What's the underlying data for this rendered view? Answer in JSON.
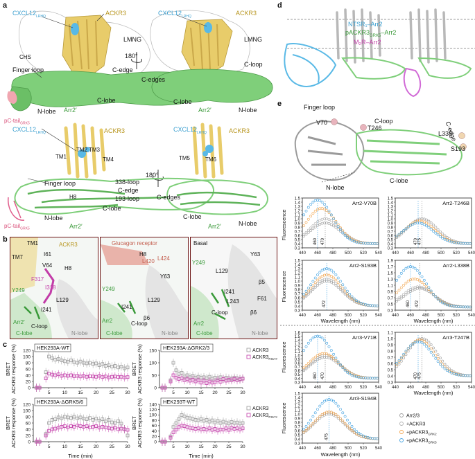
{
  "panels": {
    "a": "a",
    "b": "b",
    "c": "c",
    "d": "d",
    "e": "e"
  },
  "colors": {
    "ackr3": "#e8cc6a",
    "arr2": "#7fcf7a",
    "cxcl12": "#59b9e6",
    "ptail": "#f0a6b0",
    "magenta": "#c23ca8",
    "orange": "#f2a34a",
    "blue": "#3fa0e0",
    "grey": "#9a9a9a",
    "frame": "#6a1010"
  },
  "panel_a": {
    "top_left": {
      "cxcl12": "CXCL12",
      "cxcl12_sub": "LRHQ",
      "ackr3": "ACKR3",
      "lmng": "LMNG",
      "chs": "CHS",
      "finger_loop": "Finger loop",
      "c_edge": "C-edge",
      "c_lobe": "C-lobe",
      "n_lobe": "N-lobe",
      "arr2": "Arr2′",
      "ptail": "pC-tail",
      "ptail_sub": "GRK5"
    },
    "top_right": {
      "cxcl12": "CXCL12",
      "cxcl12_sub": "LRHQ",
      "ackr3": "ACKR3",
      "lmng": "LMNG",
      "c_loop": "C-loop",
      "c_edges": "C-edges",
      "c_lobe": "C-lobe",
      "arr2": "Arr2′",
      "n_lobe": "N-lobe"
    },
    "rotate": "180°",
    "bottom_left": {
      "cxcl12": "CXCL12",
      "cxcl12_sub": "LRHQ",
      "ackr3": "ACKR3",
      "tm1": "TM1",
      "tm2": "TM2",
      "tm3": "TM3",
      "tm4": "TM4",
      "finger_loop": "Finger loop",
      "loop338": "338-loop",
      "c_edge": "C-edge",
      "loop193": "193-loop",
      "h8": "H8",
      "c_lobe": "C-lobe",
      "n_lobe": "N-lobe",
      "arr2": "Arr2′",
      "ptail": "pC-tail",
      "ptail_sub": "GRK5"
    },
    "bottom_right": {
      "cxcl12": "CXCL12",
      "cxcl12_sub": "LRHQ",
      "ackr3": "ACKR3",
      "tm5": "TM5",
      "tm6": "TM6",
      "c_edges": "C-edges",
      "c_lobe": "C-lobe",
      "n_lobe": "N-lobe",
      "arr2": "Arr2′"
    }
  },
  "panel_b": {
    "box1": {
      "tm1": "TM1",
      "tm7": "TM7",
      "ackr3": "ACKR3",
      "i61": "I61",
      "v64": "V64",
      "h8": "H8",
      "f317": "F317",
      "i318": "I318",
      "y249": "Y249",
      "l129": "L129",
      "i241": "I241",
      "arr2": "Arr2′",
      "c_loop": "C-loop",
      "c_lobe": "C-lobe",
      "n_lobe": "N-lobe"
    },
    "box2": {
      "title": "Glucagon receptor",
      "h8": "H8",
      "l420": "L420",
      "l424": "L424",
      "y63": "Y63",
      "y249": "Y249",
      "l129": "L129",
      "i241": "I241",
      "b6": "β6",
      "arr2": "Arr2",
      "c_loop": "C-loop",
      "c_lobe": "C-lobe",
      "n_lobe": "N-lobe"
    },
    "box3": {
      "title": "Basal",
      "y63": "Y63",
      "y249": "Y249",
      "l129": "L129",
      "b5": "β5",
      "i241": "I241",
      "f61": "F61",
      "l243": "L243",
      "c_loop": "C-loop",
      "b6": "β6",
      "arr2": "Arr2",
      "c_lobe": "C-lobe",
      "n_lobe": "N-lobe"
    }
  },
  "panel_c": {
    "ylabel": "BRET",
    "ylabel2": "ACKR3 response (%)",
    "xlabel": "Time (min)",
    "legend": [
      "ACKR3",
      "ACKR3"
    ],
    "legend_sub": "F317A I318G",
    "plots": [
      {
        "title": "HEK293A-WT",
        "yticks": [
          "0",
          "20",
          "40",
          "60",
          "80",
          "100",
          "120"
        ],
        "xticks": [
          "5",
          "10",
          "15",
          "20",
          "25",
          "30"
        ]
      },
      {
        "title": "HEK293A-ΔGRK2/3",
        "yticks": [
          "0",
          "50",
          "100",
          "150"
        ],
        "xticks": [
          "5",
          "10",
          "15",
          "20",
          "25",
          "30"
        ]
      },
      {
        "title": "HEK293A-ΔGRK5/6",
        "yticks": [
          "0",
          "20",
          "40",
          "60",
          "80",
          "100",
          "120"
        ],
        "xticks": [
          "5",
          "10",
          "15",
          "20",
          "25",
          "30"
        ]
      },
      {
        "title": "HEK293T-WT",
        "yticks": [
          "0",
          "20",
          "40",
          "60",
          "80",
          "100",
          "120",
          "140"
        ],
        "xticks": [
          "5",
          "10",
          "15",
          "20",
          "25",
          "30"
        ]
      }
    ]
  },
  "panel_d": {
    "l1": "NTSR₁–Arr2",
    "l2_pre": "pACKR3",
    "l2_sub": "GRK5",
    "l2_post": "–Arr2",
    "l3": "M₂R–Arr2"
  },
  "panel_e": {
    "structure": {
      "finger_loop": "Finger loop",
      "c_loop": "C-loop",
      "v70": "V70",
      "t246": "T246",
      "l338": "L338",
      "c_edge": "C-edge",
      "s193": "S193",
      "n_lobe": "N-lobe",
      "c_lobe": "C-lobe"
    },
    "ylabel": "Fluorescence",
    "xlabel": "Wavelength (nm)",
    "xticks": [
      "440",
      "460",
      "480",
      "500",
      "520",
      "540"
    ],
    "legend": [
      "Arr2/3",
      "+ACKR3",
      "+pACKR3",
      "+pACKR3"
    ],
    "legend_sub": [
      "",
      "",
      "GRK2",
      "GRK5"
    ],
    "plots": [
      {
        "title": "Arr2-V70B",
        "vlines": [
          "460",
          "470"
        ]
      },
      {
        "title": "Arr2-T246B",
        "vlines": [
          "470",
          "475"
        ]
      },
      {
        "title": "Arr2-S193B",
        "vlines": [
          "472"
        ]
      },
      {
        "title": "Arr2-L338B",
        "vlines": [
          "460",
          "472"
        ]
      },
      {
        "title": "Arr3-V71B",
        "vlines": [
          "460",
          "470"
        ]
      },
      {
        "title": "Arr3-T247B",
        "vlines": [
          "470",
          "475"
        ]
      },
      {
        "title": "Arr3-S194B",
        "vlines": [
          "475"
        ]
      }
    ]
  },
  "chart_data": [
    {
      "type": "scatter",
      "title": "HEK293A-WT",
      "xlabel": "Time (min)",
      "ylabel": "BRET ACKR3 response (%)",
      "xlim": [
        0,
        30
      ],
      "ylim": [
        0,
        120
      ],
      "series": [
        {
          "name": "ACKR3",
          "x": [
            1,
            2,
            4,
            5,
            6,
            7,
            8,
            9,
            10,
            11,
            12,
            13,
            14,
            15,
            16,
            17,
            18,
            19,
            20,
            21,
            22,
            23,
            24,
            25,
            26,
            27,
            28,
            29,
            30
          ],
          "y": [
            0,
            0,
            50,
            100,
            95,
            90,
            92,
            88,
            85,
            83,
            88,
            82,
            80,
            84,
            80,
            78,
            80,
            76,
            78,
            72,
            76,
            70,
            72,
            68,
            70,
            65,
            68,
            62,
            65
          ]
        },
        {
          "name": "ACKR3",
          "x": [
            1,
            2,
            4,
            5,
            6,
            7,
            8,
            9,
            10,
            11,
            12,
            13,
            14,
            15,
            16,
            17,
            18,
            19,
            20,
            21,
            22,
            23,
            24,
            25,
            26,
            27,
            28,
            29,
            30
          ],
          "y": [
            0,
            0,
            30,
            45,
            42,
            40,
            43,
            38,
            40,
            38,
            40,
            37,
            38,
            36,
            38,
            35,
            37,
            36,
            35,
            38,
            34,
            36,
            33,
            35,
            36,
            34,
            35,
            33,
            34
          ]
        }
      ]
    },
    {
      "type": "scatter",
      "title": "HEK293A-ΔGRK2/3",
      "xlabel": "Time (min)",
      "ylabel": "BRET ACKR3 response (%)",
      "xlim": [
        0,
        30
      ],
      "ylim": [
        0,
        150
      ],
      "series": [
        {
          "name": "ACKR3",
          "x": [
            1,
            2,
            4,
            5,
            6,
            7,
            8,
            9,
            10,
            11,
            12,
            13,
            14,
            15,
            16,
            17,
            18,
            19,
            20,
            21,
            22,
            23,
            24,
            25,
            26,
            27,
            28,
            29,
            30
          ],
          "y": [
            0,
            0,
            30,
            100,
            70,
            55,
            60,
            45,
            50,
            42,
            48,
            40,
            44,
            40,
            42,
            38,
            44,
            36,
            40,
            38,
            42,
            35,
            40,
            38,
            36,
            40,
            38,
            35,
            37
          ]
        },
        {
          "name": "ACKR3",
          "x": [
            1,
            2,
            4,
            5,
            6,
            7,
            8,
            9,
            10,
            11,
            12,
            13,
            14,
            15,
            16,
            17,
            18,
            19,
            20,
            21,
            22,
            23,
            24,
            25,
            26,
            27,
            28,
            29,
            30
          ],
          "y": [
            0,
            0,
            25,
            50,
            40,
            35,
            38,
            30,
            34,
            28,
            32,
            25,
            30,
            20,
            28,
            18,
            25,
            20,
            22,
            30,
            24,
            35,
            28,
            32,
            30,
            35,
            30,
            33,
            36
          ]
        }
      ]
    },
    {
      "type": "scatter",
      "title": "HEK293A-ΔGRK5/6",
      "xlabel": "Time (min)",
      "ylabel": "BRET ACKR3 response (%)",
      "xlim": [
        0,
        30
      ],
      "ylim": [
        0,
        120
      ],
      "series": [
        {
          "name": "ACKR3",
          "x": [
            1,
            2,
            4,
            5,
            6,
            7,
            8,
            9,
            10,
            11,
            12,
            13,
            14,
            15,
            16,
            17,
            18,
            19,
            20,
            21,
            22,
            23,
            24,
            25,
            26,
            27,
            28,
            29,
            30
          ],
          "y": [
            0,
            0,
            25,
            60,
            70,
            72,
            78,
            75,
            80,
            78,
            76,
            80,
            75,
            78,
            74,
            72,
            76,
            70,
            74,
            68,
            72,
            65,
            70,
            62,
            60,
            66,
            58,
            40,
            20
          ]
        },
        {
          "name": "ACKR3",
          "x": [
            1,
            2,
            4,
            5,
            6,
            7,
            8,
            9,
            10,
            11,
            12,
            13,
            14,
            15,
            16,
            17,
            18,
            19,
            20,
            21,
            22,
            23,
            24,
            25,
            26,
            27,
            28,
            29,
            30
          ],
          "y": [
            0,
            0,
            20,
            35,
            40,
            42,
            45,
            48,
            50,
            46,
            50,
            48,
            52,
            50,
            48,
            50,
            46,
            48,
            50,
            45,
            48,
            46,
            44,
            42,
            45,
            40,
            42,
            40,
            38
          ]
        }
      ]
    },
    {
      "type": "scatter",
      "title": "HEK293T-WT",
      "xlabel": "Time (min)",
      "ylabel": "BRET ACKR3 response (%)",
      "xlim": [
        0,
        30
      ],
      "ylim": [
        0,
        140
      ],
      "series": [
        {
          "name": "ACKR3",
          "x": [
            1,
            2,
            4,
            5,
            6,
            7,
            8,
            9,
            10,
            11,
            12,
            13,
            14,
            15,
            16,
            17,
            18,
            19,
            20,
            21,
            22,
            23,
            24,
            25,
            26,
            27,
            28,
            29,
            30
          ],
          "y": [
            0,
            0,
            20,
            55,
            70,
            85,
            100,
            95,
            90,
            88,
            85,
            82,
            80,
            85,
            78,
            82,
            75,
            80,
            72,
            78,
            70,
            75,
            72,
            68,
            74,
            70,
            72,
            68,
            70
          ]
        },
        {
          "name": "ACKR3",
          "x": [
            1,
            2,
            4,
            5,
            6,
            7,
            8,
            9,
            10,
            11,
            12,
            13,
            14,
            15,
            16,
            17,
            18,
            19,
            20,
            21,
            22,
            23,
            24,
            25,
            26,
            27,
            28,
            29,
            30
          ],
          "y": [
            0,
            0,
            15,
            35,
            45,
            55,
            60,
            58,
            55,
            52,
            50,
            48,
            50,
            46,
            48,
            45,
            50,
            44,
            48,
            42,
            46,
            45,
            50,
            44,
            52,
            48,
            50,
            46,
            50
          ]
        }
      ]
    },
    {
      "type": "scatter",
      "title": "Arr2-V70B",
      "xlabel": "Wavelength (nm)",
      "ylabel": "Fluorescence",
      "xlim": [
        440,
        540
      ],
      "ylim": [
        0.3,
        1.5
      ],
      "peaks": {
        "Arr2/3": [
          470,
          0.9
        ],
        "+ACKR3": [
          470,
          1.0
        ],
        "+pACKR3 GRK2": [
          465,
          1.25
        ],
        "+pACKR3 GRK5": [
          460,
          1.45
        ]
      }
    },
    {
      "type": "scatter",
      "title": "Arr2-T246B",
      "xlabel": "Wavelength (nm)",
      "ylabel": "Fluorescence",
      "xlim": [
        440,
        540
      ],
      "ylim": [
        0.3,
        1.5
      ],
      "peaks": {
        "Arr2/3": [
          475,
          1.0
        ],
        "+ACKR3": [
          475,
          1.0
        ],
        "+pACKR3 GRK2": [
          472,
          0.95
        ],
        "+pACKR3 GRK5": [
          470,
          0.9
        ]
      }
    },
    {
      "type": "scatter",
      "title": "Arr2-S193B",
      "xlabel": "Wavelength (nm)",
      "ylabel": "Fluorescence",
      "xlim": [
        440,
        540
      ],
      "ylim": [
        0.3,
        1.5
      ],
      "peaks": {
        "Arr2/3": [
          472,
          1.0
        ],
        "+ACKR3": [
          472,
          1.05
        ],
        "+pACKR3 GRK2": [
          472,
          1.15
        ],
        "+pACKR3 GRK5": [
          472,
          1.3
        ]
      }
    },
    {
      "type": "scatter",
      "title": "Arr2-L338B",
      "xlabel": "Wavelength (nm)",
      "ylabel": "Fluorescence",
      "xlim": [
        440,
        540
      ],
      "ylim": [
        0.3,
        1.9
      ],
      "peaks": {
        "Arr2/3": [
          472,
          1.0
        ],
        "+ACKR3": [
          470,
          1.05
        ],
        "+pACKR3 GRK2": [
          465,
          1.3
        ],
        "+pACKR3 GRK5": [
          460,
          1.7
        ]
      }
    },
    {
      "type": "scatter",
      "title": "Arr3-V71B",
      "xlabel": "Wavelength (nm)",
      "ylabel": "Fluorescence",
      "xlim": [
        440,
        540
      ],
      "ylim": [
        0.3,
        1.6
      ],
      "peaks": {
        "Arr2/3": [
          470,
          0.95
        ],
        "+ACKR3": [
          470,
          1.0
        ],
        "+pACKR3 GRK2": [
          468,
          1.05
        ],
        "+pACKR3 GRK5": [
          460,
          1.5
        ]
      }
    },
    {
      "type": "scatter",
      "title": "Arr3-T247B",
      "xlabel": "Wavelength (nm)",
      "ylabel": "Fluorescence",
      "xlim": [
        440,
        540
      ],
      "ylim": [
        0.3,
        1.1
      ],
      "peaks": {
        "Arr2/3": [
          475,
          1.0
        ],
        "+ACKR3": [
          475,
          1.0
        ],
        "+pACKR3 GRK2": [
          472,
          0.98
        ],
        "+pACKR3 GRK5": [
          470,
          0.95
        ]
      }
    },
    {
      "type": "scatter",
      "title": "Arr3-S194B",
      "xlabel": "Wavelength (nm)",
      "ylabel": "Fluorescence",
      "xlim": [
        440,
        540
      ],
      "ylim": [
        0.3,
        1.5
      ],
      "peaks": {
        "Arr2/3": [
          475,
          1.0
        ],
        "+ACKR3": [
          475,
          1.05
        ],
        "+pACKR3 GRK2": [
          475,
          1.05
        ],
        "+pACKR3 GRK5": [
          475,
          1.35
        ]
      }
    }
  ]
}
